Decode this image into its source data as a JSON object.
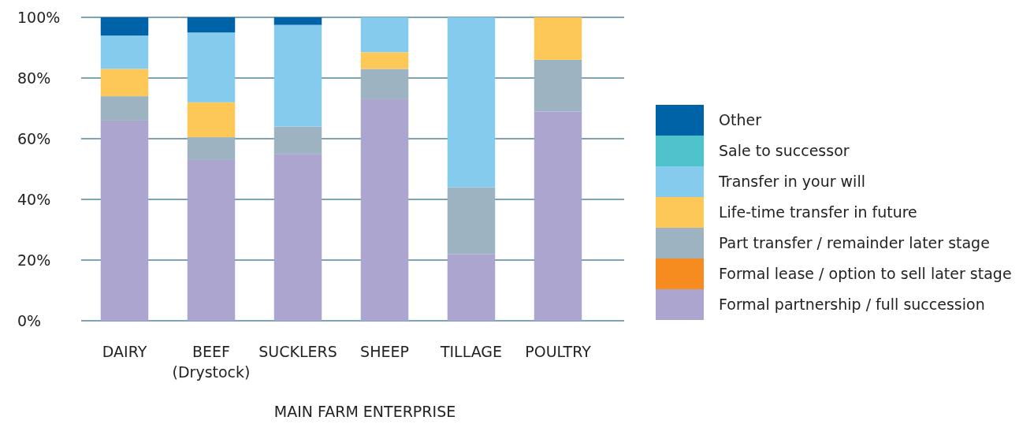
{
  "chart_data": {
    "type": "bar",
    "stacked": true,
    "xlabel": "MAIN FARM ENTERPRISE",
    "categories": [
      "DAIRY",
      "BEEF\n(Drystock)",
      "SUCKLERS",
      "SHEEP",
      "TILLAGE",
      "POULTRY"
    ],
    "series": [
      {
        "name": "Formal partnership / full succession",
        "color": "#aba5d0",
        "values": [
          66,
          53,
          55,
          73,
          22,
          69
        ]
      },
      {
        "name": "Formal lease / option to sell later stage",
        "color": "#f68b20",
        "values": [
          0,
          0,
          0,
          0,
          0,
          0
        ]
      },
      {
        "name": "Part transfer / remainder later stage",
        "color": "#9db3c1",
        "values": [
          8,
          7.5,
          9,
          10,
          22,
          17
        ]
      },
      {
        "name": "Life-time transfer in future",
        "color": "#fec859",
        "values": [
          9,
          11.5,
          0,
          5.5,
          0,
          14
        ]
      },
      {
        "name": "Transfer in your will",
        "color": "#84cbee",
        "values": [
          11,
          23,
          33.5,
          11.5,
          56,
          0
        ]
      },
      {
        "name": "Sale to successor",
        "color": "#4fc3cc",
        "values": [
          0,
          0,
          0,
          0,
          0,
          0
        ]
      },
      {
        "name": "Other",
        "color": "#0063a7",
        "values": [
          6,
          5,
          2.5,
          0,
          0,
          0
        ]
      }
    ],
    "ylim": [
      0,
      100
    ],
    "yticks": [
      {
        "value": 0,
        "label": "0%"
      },
      {
        "value": 20,
        "label": "20%"
      },
      {
        "value": 40,
        "label": "40%"
      },
      {
        "value": 60,
        "label": "60%"
      },
      {
        "value": 80,
        "label": "80%"
      },
      {
        "value": 100,
        "label": "100%"
      }
    ],
    "grid": "y",
    "legend": "right"
  }
}
